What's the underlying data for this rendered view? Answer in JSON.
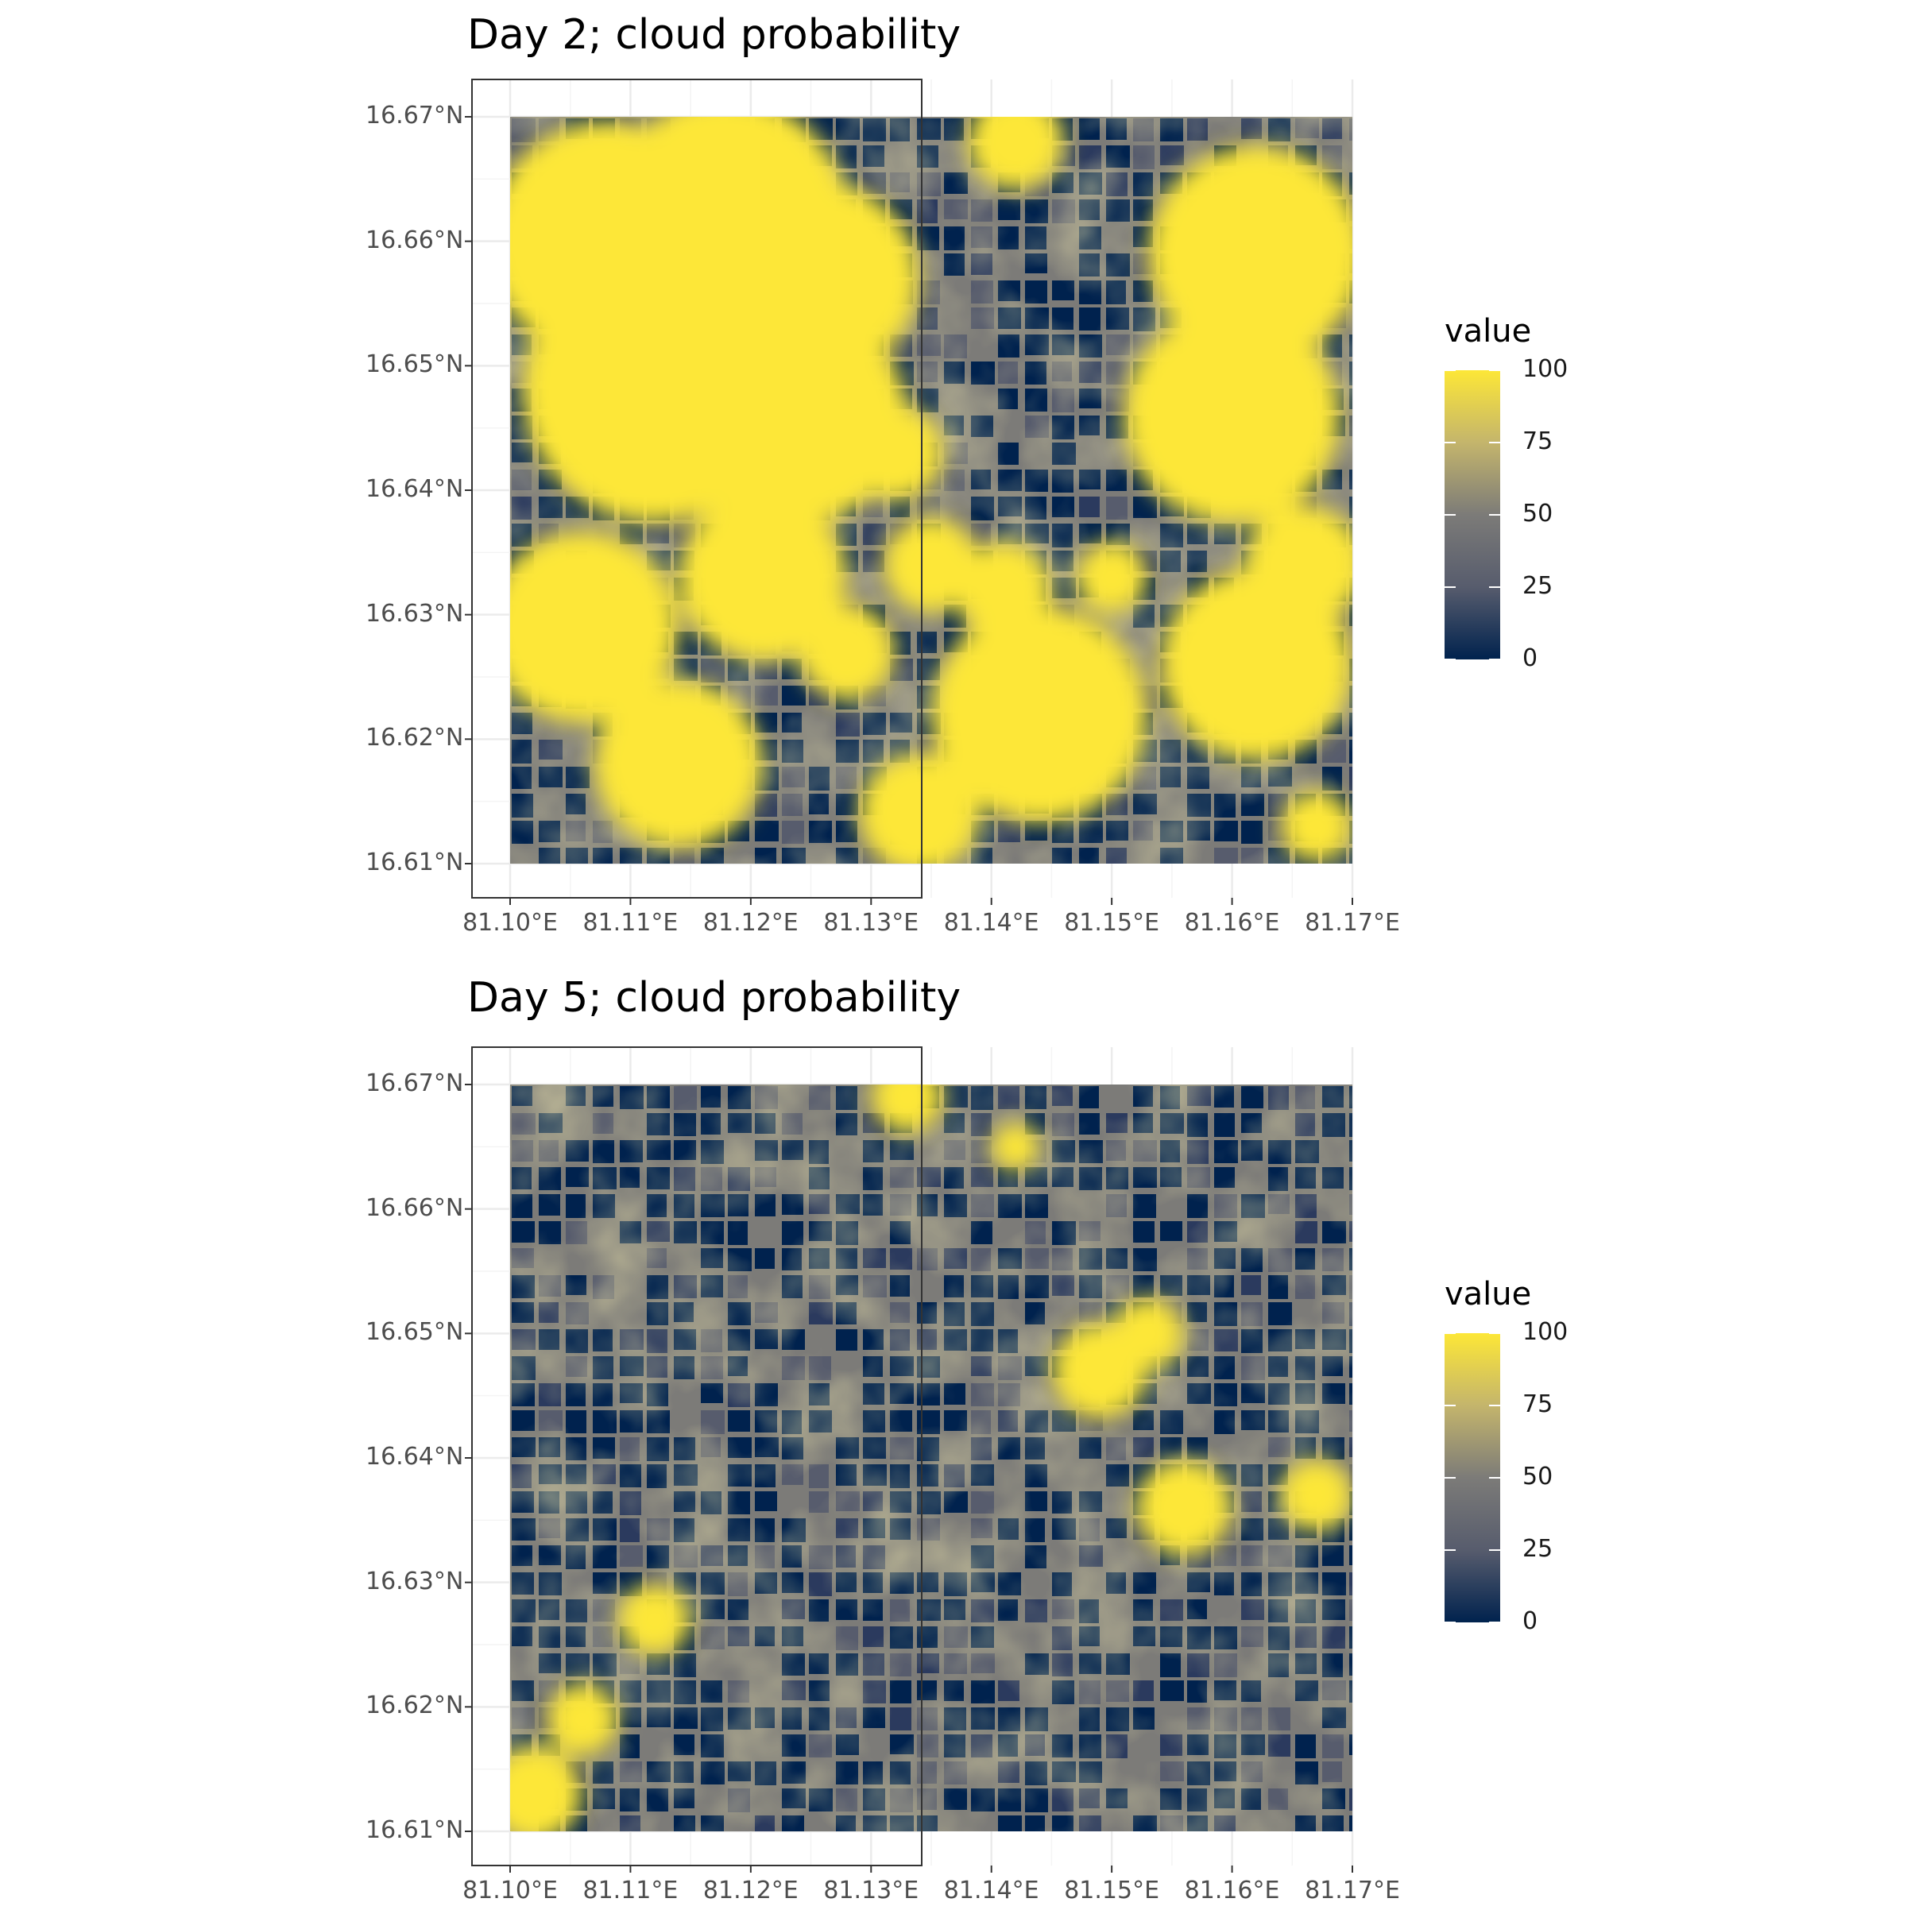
{
  "chart_data": [
    {
      "type": "heatmap",
      "title": "Day 2; cloud probability",
      "xlabel": "",
      "ylabel": "",
      "x_ticks": [
        "81.10°E",
        "81.11°E",
        "81.12°E",
        "81.13°E",
        "81.14°E",
        "81.15°E",
        "81.16°E",
        "81.17°E"
      ],
      "x_tick_values": [
        81.1,
        81.11,
        81.12,
        81.13,
        81.14,
        81.15,
        81.16,
        81.17
      ],
      "y_ticks": [
        "16.67°N",
        "16.66°N",
        "16.65°N",
        "16.64°N",
        "16.63°N",
        "16.62°N",
        "16.61°N"
      ],
      "y_tick_values": [
        16.67,
        16.66,
        16.65,
        16.64,
        16.63,
        16.62,
        16.61
      ],
      "xlim": [
        81.1,
        81.17
      ],
      "ylim": [
        16.61,
        16.67
      ],
      "grid": true,
      "legend": {
        "title": "value",
        "position": "right",
        "range": [
          0,
          100
        ],
        "breaks": [
          "100",
          "75",
          "50",
          "25",
          "0"
        ],
        "break_values": [
          100,
          75,
          50,
          25,
          0
        ],
        "colors": [
          "#00224e",
          "#575c6d",
          "#7c7b78",
          "#c4b56c",
          "#fde737"
        ]
      },
      "clouds": [
        {
          "lon": 81.108,
          "lat": 16.66,
          "r": 0.01
        },
        {
          "lon": 81.118,
          "lat": 16.662,
          "r": 0.01
        },
        {
          "lon": 81.126,
          "lat": 16.657,
          "r": 0.008
        },
        {
          "lon": 81.112,
          "lat": 16.648,
          "r": 0.011
        },
        {
          "lon": 81.124,
          "lat": 16.646,
          "r": 0.009
        },
        {
          "lon": 81.132,
          "lat": 16.643,
          "r": 0.004
        },
        {
          "lon": 81.142,
          "lat": 16.668,
          "r": 0.004
        },
        {
          "lon": 81.162,
          "lat": 16.659,
          "r": 0.009
        },
        {
          "lon": 81.16,
          "lat": 16.646,
          "r": 0.009
        },
        {
          "lon": 81.166,
          "lat": 16.634,
          "r": 0.005
        },
        {
          "lon": 81.162,
          "lat": 16.626,
          "r": 0.008
        },
        {
          "lon": 81.106,
          "lat": 16.629,
          "r": 0.008
        },
        {
          "lon": 81.121,
          "lat": 16.633,
          "r": 0.007
        },
        {
          "lon": 81.128,
          "lat": 16.627,
          "r": 0.004
        },
        {
          "lon": 81.135,
          "lat": 16.634,
          "r": 0.004
        },
        {
          "lon": 81.141,
          "lat": 16.632,
          "r": 0.004
        },
        {
          "lon": 81.144,
          "lat": 16.622,
          "r": 0.009
        },
        {
          "lon": 81.134,
          "lat": 16.614,
          "r": 0.005
        },
        {
          "lon": 81.114,
          "lat": 16.618,
          "r": 0.007
        },
        {
          "lon": 81.15,
          "lat": 16.633,
          "r": 0.003
        },
        {
          "lon": 81.167,
          "lat": 16.613,
          "r": 0.003
        }
      ]
    },
    {
      "type": "heatmap",
      "title": "Day 5; cloud probability",
      "xlabel": "",
      "ylabel": "",
      "x_ticks": [
        "81.10°E",
        "81.11°E",
        "81.12°E",
        "81.13°E",
        "81.14°E",
        "81.15°E",
        "81.16°E",
        "81.17°E"
      ],
      "x_tick_values": [
        81.1,
        81.11,
        81.12,
        81.13,
        81.14,
        81.15,
        81.16,
        81.17
      ],
      "y_ticks": [
        "16.67°N",
        "16.66°N",
        "16.65°N",
        "16.64°N",
        "16.63°N",
        "16.62°N",
        "16.61°N"
      ],
      "y_tick_values": [
        16.67,
        16.66,
        16.65,
        16.64,
        16.63,
        16.62,
        16.61
      ],
      "xlim": [
        81.1,
        81.17
      ],
      "ylim": [
        16.61,
        16.67
      ],
      "grid": true,
      "legend": {
        "title": "value",
        "position": "right",
        "range": [
          0,
          100
        ],
        "breaks": [
          "100",
          "75",
          "50",
          "25",
          "0"
        ],
        "break_values": [
          100,
          75,
          50,
          25,
          0
        ],
        "colors": [
          "#00224e",
          "#575c6d",
          "#7c7b78",
          "#c4b56c",
          "#fde737"
        ]
      },
      "clouds": [
        {
          "lon": 81.133,
          "lat": 16.669,
          "r": 0.003
        },
        {
          "lon": 81.142,
          "lat": 16.665,
          "r": 0.002
        },
        {
          "lon": 81.149,
          "lat": 16.647,
          "r": 0.004
        },
        {
          "lon": 81.153,
          "lat": 16.65,
          "r": 0.003
        },
        {
          "lon": 81.156,
          "lat": 16.636,
          "r": 0.004
        },
        {
          "lon": 81.167,
          "lat": 16.637,
          "r": 0.003
        },
        {
          "lon": 81.112,
          "lat": 16.627,
          "r": 0.003
        },
        {
          "lon": 81.106,
          "lat": 16.619,
          "r": 0.003
        },
        {
          "lon": 81.102,
          "lat": 16.613,
          "r": 0.004
        }
      ]
    }
  ]
}
